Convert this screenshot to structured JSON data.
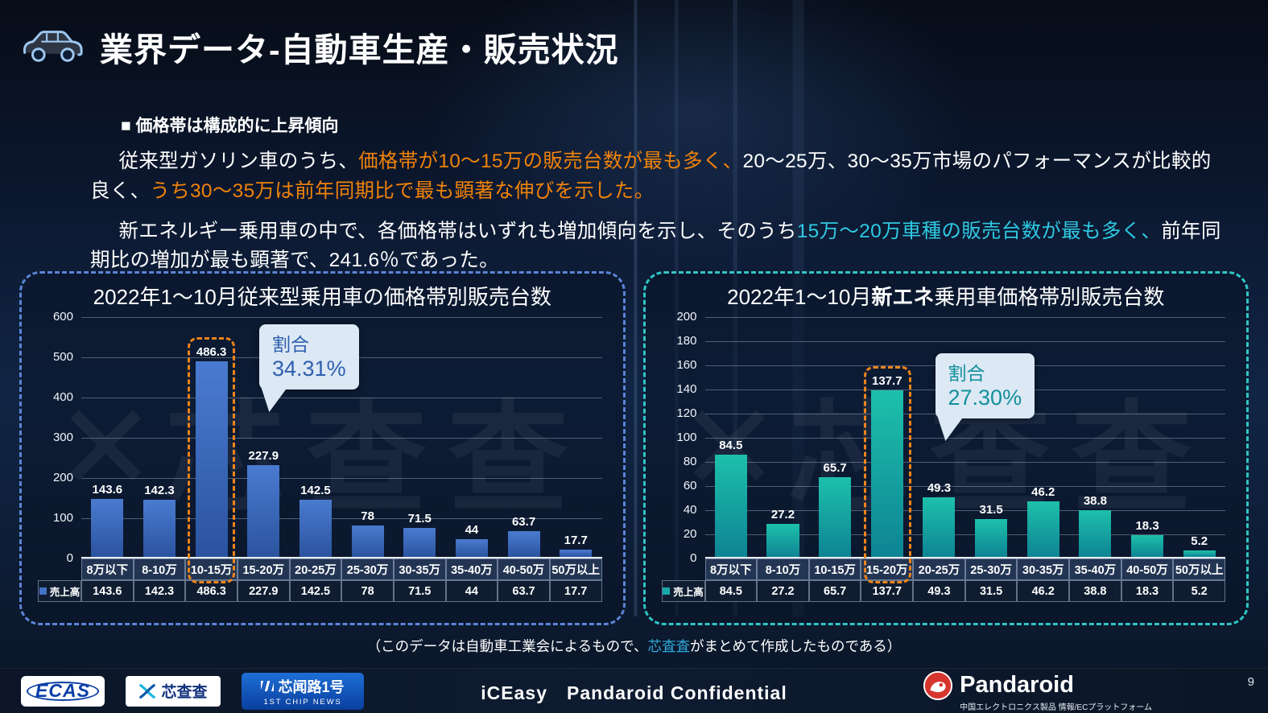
{
  "header": {
    "title": "業界データ-自動車生産・販売状況"
  },
  "intro": {
    "heading": "■ 価格帯は構成的に上昇傾向",
    "p1": {
      "s1": "従来型ガソリン車のうち、",
      "s2": "価格帯が10～15万の販売台数が最も多く、",
      "s3": "20～25万、30～35万市場のパフォーマンスが比較的良く、",
      "s4": "うち30～35万は前年同期比で最も顕著な伸びを示した。"
    },
    "p2": {
      "s1": "新エネルギー乗用車の中で、各価格帯はいずれも増加傾向を示し、そのうち",
      "s2": "15万～20万車種の販売台数が最も多く、",
      "s3": "前年同期比の増加が最も顕著で、241.6％であった。"
    }
  },
  "chart_data": [
    {
      "type": "bar",
      "title": "2022年1～10月従来型乗用車の価格帯別販売台数",
      "title_pre": "2022年1～10月従来型乗用車の価格帯別販売台数",
      "title_bold": "",
      "title_post": "",
      "categories": [
        "8万以下",
        "8-10万",
        "10-15万",
        "15-20万",
        "20-25万",
        "25-30万",
        "30-35万",
        "35-40万",
        "40-50万",
        "50万以上"
      ],
      "values": [
        143.6,
        142.3,
        486.3,
        227.9,
        142.5,
        78,
        71.5,
        44,
        63.7,
        17.7
      ],
      "ylim": [
        0,
        600
      ],
      "ytick_step": 100,
      "grid": "on",
      "legend_label": "売上高",
      "legend_position": "bottom-left",
      "legend_color": "#4472C4",
      "bar_top": "#4A7BD0",
      "bar_bottom": "#2B539F",
      "highlight_index": 2,
      "highlight_color": "#F08418",
      "callout_line1": "割合",
      "callout_line2": "34.31%",
      "callout_color": "#2E5FAE",
      "border_color": "#5B85D6"
    },
    {
      "type": "bar",
      "title": "2022年1～10月新エネ乗用車価格帯別販売台数",
      "title_pre": "2022年1～10月",
      "title_bold": "新エネ",
      "title_post": "乗用車価格帯別販売台数",
      "categories": [
        "8万以下",
        "8-10万",
        "10-15万",
        "15-20万",
        "20-25万",
        "25-30万",
        "30-35万",
        "35-40万",
        "40-50万",
        "50万以上"
      ],
      "values": [
        84.5,
        27.2,
        65.7,
        137.7,
        49.3,
        31.5,
        46.2,
        38.8,
        18.3,
        5.2
      ],
      "ylim": [
        0,
        200
      ],
      "ytick_step": 20,
      "grid": "on",
      "legend_label": "売上高",
      "legend_position": "bottom-left",
      "legend_color": "#18A8A8",
      "bar_top": "#1DC0AB",
      "bar_bottom": "#0E8494",
      "highlight_index": 3,
      "highlight_color": "#F08418",
      "callout_line1": "割合",
      "callout_line2": "27.30%",
      "callout_color": "#12919C",
      "border_color": "#2FC6C6"
    }
  ],
  "watermark": {
    "mark": "✕",
    "text": "芯查查"
  },
  "footnote": {
    "pre": "（このデータは自動車工業会によるもので、",
    "brand": "芯査査",
    "post": "がまとめて作成したものである）"
  },
  "footer": {
    "ecas_label": "ECAS",
    "xcc_label": "芯查查",
    "xwl_line1": "芯闻路1号",
    "xwl_line2": "1ST CHIP NEWS",
    "center_text": "iCEasy　Pandaroid Confidential",
    "pandaroid_name": "Pandaroid",
    "pandaroid_subtitle": "中国エレクトロニクス製品 情報/ECプラットフォーム",
    "page_number": "9"
  }
}
